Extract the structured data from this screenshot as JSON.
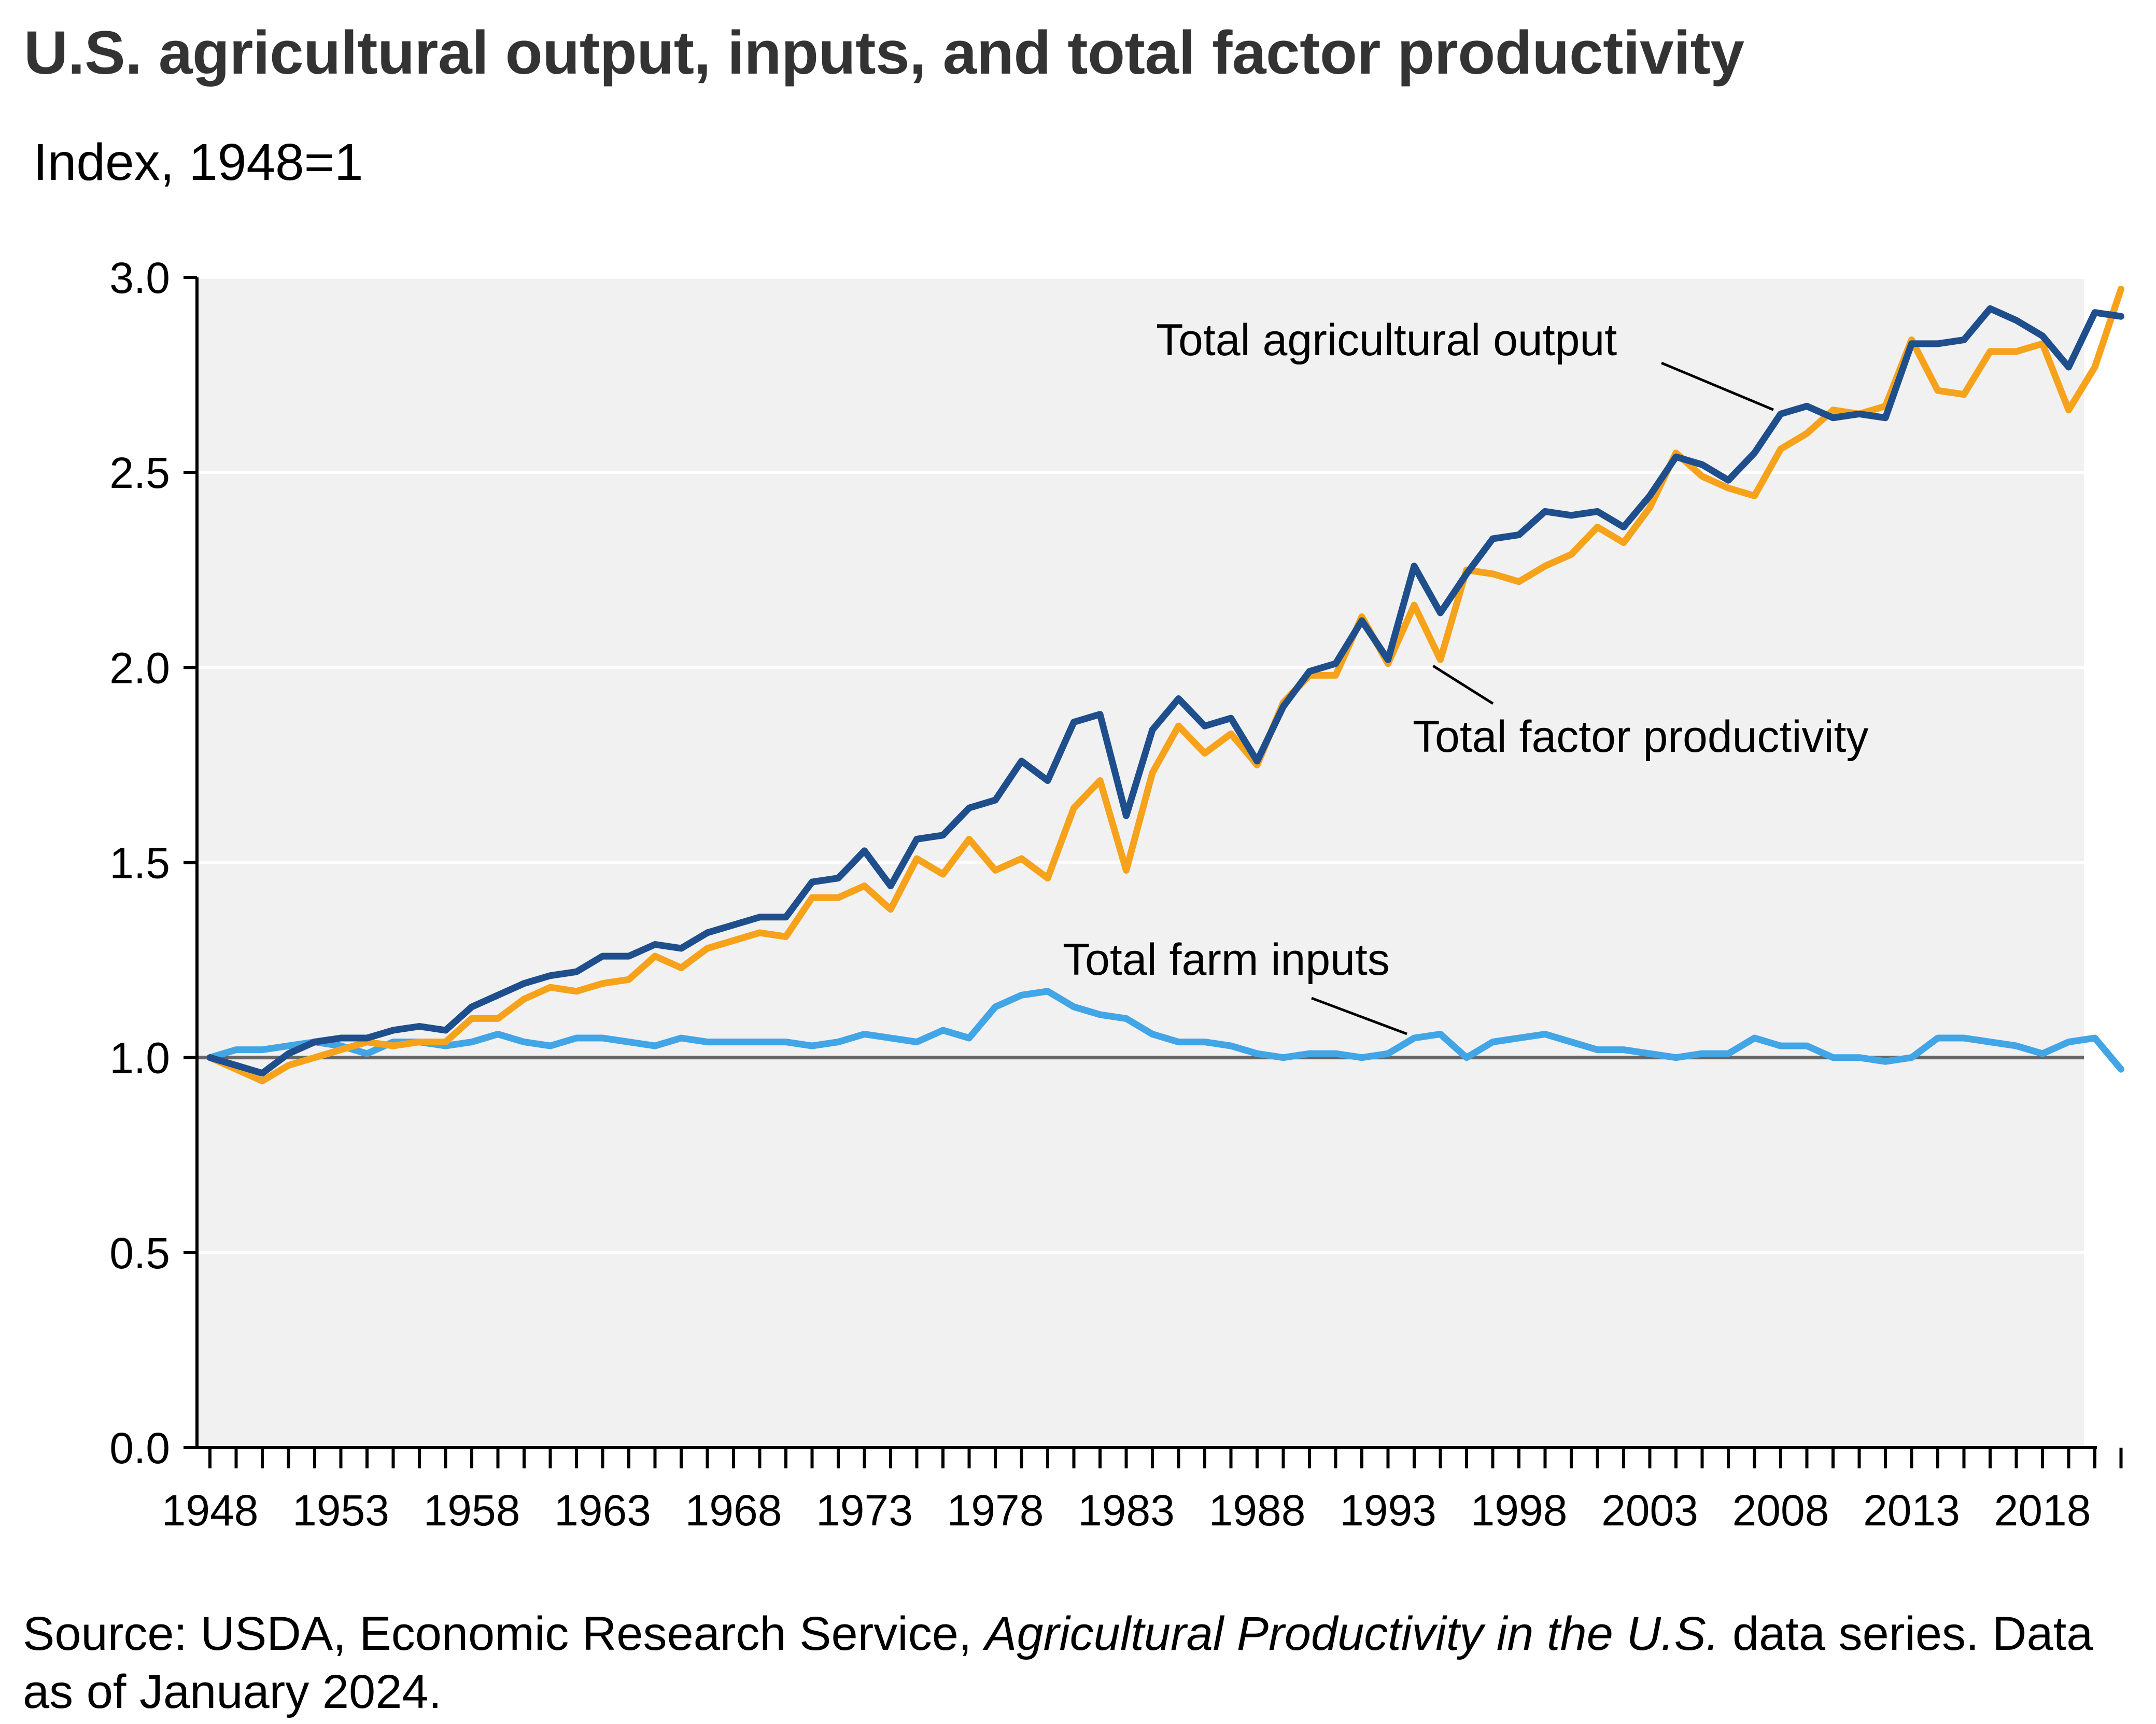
{
  "chart_data": {
    "type": "line",
    "title": "U.S. agricultural output, inputs, and total factor productivity",
    "ylabel": "Index, 1948=1",
    "xlim": [
      1948,
      2021
    ],
    "ylim": [
      0,
      3
    ],
    "yticks": [
      "0.0",
      "0.5",
      "1.0",
      "1.5",
      "2.0",
      "2.5",
      "3.0"
    ],
    "xtick_labels": [
      "1948",
      "1953",
      "1958",
      "1963",
      "1968",
      "1973",
      "1978",
      "1983",
      "1988",
      "1993",
      "1998",
      "2003",
      "2008",
      "2013",
      "2018"
    ],
    "reference_line": 1.0,
    "grid": "horizontal",
    "x": [
      1948,
      1949,
      1950,
      1951,
      1952,
      1953,
      1954,
      1955,
      1956,
      1957,
      1958,
      1959,
      1960,
      1961,
      1962,
      1963,
      1964,
      1965,
      1966,
      1967,
      1968,
      1969,
      1970,
      1971,
      1972,
      1973,
      1974,
      1975,
      1976,
      1977,
      1978,
      1979,
      1980,
      1981,
      1982,
      1983,
      1984,
      1985,
      1986,
      1987,
      1988,
      1989,
      1990,
      1991,
      1992,
      1993,
      1994,
      1995,
      1996,
      1997,
      1998,
      1999,
      2000,
      2001,
      2002,
      2003,
      2004,
      2005,
      2006,
      2007,
      2008,
      2009,
      2010,
      2011,
      2012,
      2013,
      2014,
      2015,
      2016,
      2017,
      2018,
      2019,
      2020,
      2021
    ],
    "series": [
      {
        "name": "Total agricultural output",
        "color": "#1f4e8c",
        "values": [
          1.0,
          0.98,
          0.96,
          1.01,
          1.04,
          1.05,
          1.05,
          1.07,
          1.08,
          1.07,
          1.13,
          1.16,
          1.19,
          1.21,
          1.22,
          1.26,
          1.26,
          1.29,
          1.28,
          1.32,
          1.34,
          1.36,
          1.36,
          1.45,
          1.46,
          1.53,
          1.44,
          1.56,
          1.57,
          1.64,
          1.66,
          1.76,
          1.71,
          1.86,
          1.88,
          1.62,
          1.84,
          1.92,
          1.85,
          1.87,
          1.76,
          1.9,
          1.99,
          2.01,
          2.12,
          2.02,
          2.26,
          2.14,
          2.24,
          2.33,
          2.34,
          2.4,
          2.39,
          2.4,
          2.36,
          2.44,
          2.54,
          2.52,
          2.48,
          2.55,
          2.65,
          2.67,
          2.64,
          2.65,
          2.64,
          2.83,
          2.83,
          2.84,
          2.92,
          2.89,
          2.85,
          2.77,
          2.91,
          2.9
        ]
      },
      {
        "name": "Total factor productivity",
        "color": "#f7a21b",
        "values": [
          1.0,
          0.97,
          0.94,
          0.98,
          1.0,
          1.02,
          1.04,
          1.03,
          1.04,
          1.04,
          1.1,
          1.1,
          1.15,
          1.18,
          1.17,
          1.19,
          1.2,
          1.26,
          1.23,
          1.28,
          1.3,
          1.32,
          1.31,
          1.41,
          1.41,
          1.44,
          1.38,
          1.51,
          1.47,
          1.56,
          1.48,
          1.51,
          1.46,
          1.64,
          1.71,
          1.48,
          1.73,
          1.85,
          1.78,
          1.83,
          1.75,
          1.91,
          1.98,
          1.98,
          2.13,
          2.01,
          2.16,
          2.02,
          2.25,
          2.24,
          2.22,
          2.26,
          2.29,
          2.36,
          2.32,
          2.41,
          2.55,
          2.49,
          2.46,
          2.44,
          2.56,
          2.6,
          2.66,
          2.65,
          2.67,
          2.84,
          2.71,
          2.7,
          2.81,
          2.81,
          2.83,
          2.66,
          2.77,
          2.97
        ]
      },
      {
        "name": "Total farm inputs",
        "color": "#42a5e6",
        "values": [
          1.0,
          1.02,
          1.02,
          1.03,
          1.04,
          1.03,
          1.01,
          1.04,
          1.04,
          1.03,
          1.04,
          1.06,
          1.04,
          1.03,
          1.05,
          1.05,
          1.04,
          1.03,
          1.05,
          1.04,
          1.04,
          1.04,
          1.04,
          1.03,
          1.04,
          1.06,
          1.05,
          1.04,
          1.07,
          1.05,
          1.13,
          1.16,
          1.17,
          1.13,
          1.11,
          1.1,
          1.06,
          1.04,
          1.04,
          1.03,
          1.01,
          1.0,
          1.01,
          1.01,
          1.0,
          1.01,
          1.05,
          1.06,
          1.0,
          1.04,
          1.05,
          1.06,
          1.04,
          1.02,
          1.02,
          1.01,
          1.0,
          1.01,
          1.01,
          1.05,
          1.03,
          1.03,
          1.0,
          1.0,
          0.99,
          1.0,
          1.05,
          1.05,
          1.04,
          1.03,
          1.01,
          1.04,
          1.05,
          0.97
        ]
      }
    ],
    "annotations": [
      {
        "text": "Total agricultural output",
        "series": "Total agricultural output",
        "at_year": 2008
      },
      {
        "text": "Total factor productivity",
        "series": "Total factor productivity",
        "at_year": 1995
      },
      {
        "text": "Total farm inputs",
        "series": "Total farm inputs",
        "at_year": 1994
      }
    ]
  },
  "source": {
    "prefix": "Source: USDA, Economic Research Service, ",
    "italic": "Agricultural Productivity in the U.S.",
    "suffix": " data series. Data as of January 2024."
  },
  "colors": {
    "plot_background": "#f1f1f1",
    "gridline": "#ffffff",
    "reference_line": "#666666",
    "title": "#333333"
  }
}
